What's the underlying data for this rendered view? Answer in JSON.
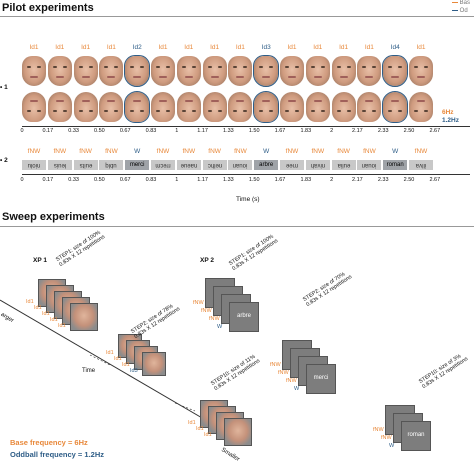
{
  "pilot": {
    "title": "Pilot experiments",
    "legend_base": "Bas",
    "legend_odd": "Od",
    "row1_marker": "1",
    "row2_marker": "2",
    "freq_base": "6Hz",
    "freq_odd": "1.2Hz",
    "ids": [
      "Id1",
      "Id1",
      "Id1",
      "Id1",
      "Id2",
      "Id1",
      "Id1",
      "Id1",
      "Id1",
      "Id3",
      "Id1",
      "Id1",
      "Id1",
      "Id1",
      "Id4",
      "Id1"
    ],
    "ticks": [
      "0",
      "0.17",
      "0.33",
      "0.50",
      "0.67",
      "0.83",
      "1",
      "1.17",
      "1.33",
      "1.50",
      "1.67",
      "1.83",
      "2",
      "2.17",
      "2.33",
      "2.50",
      "2.67"
    ],
    "words_top": [
      "fNW",
      "fNW",
      "fNW",
      "fNW",
      "W",
      "fNW",
      "fNW",
      "fNW",
      "fNW",
      "W",
      "fNW",
      "fNW",
      "fNW",
      "fNW",
      "W",
      "fNW"
    ],
    "words": [
      "niolu",
      "leuis",
      "euits",
      "ublq",
      "merci",
      "rrecm",
      "naeue",
      "nelhc",
      "iouan",
      "arbre",
      "rnee",
      "nivah",
      "eulia",
      "iouan",
      "roman",
      "illva"
    ],
    "time_label": "Time (s)"
  },
  "sweep": {
    "title": "Sweep experiments",
    "xp1": "XP 1",
    "xp2": "XP 2",
    "step1": "STEP1: size of 100%",
    "step1b": "0.83s X 12 repetitions",
    "step2_xp1": "STEP2: size of 78%",
    "step2_xp2": "STEP2: size of 70%",
    "step2b": "0.83s X 12 repetitions",
    "step10_xp1": "STEP10: size of 11%",
    "step10_xp2": "STEP10: size of 3%",
    "step10b": "0.83s X 12 repetitions",
    "larger": "arger",
    "smaller": "Smaller",
    "time": "Time",
    "id1": "Id1",
    "id3": "Id3",
    "fnw": "fNW",
    "w": "W",
    "word_arbre": "arbre",
    "word_merci": "merci",
    "word_roman": "roman",
    "base_freq": "Base frequency = 6Hz",
    "odd_freq": "Oddball frequency = 1.2Hz"
  }
}
